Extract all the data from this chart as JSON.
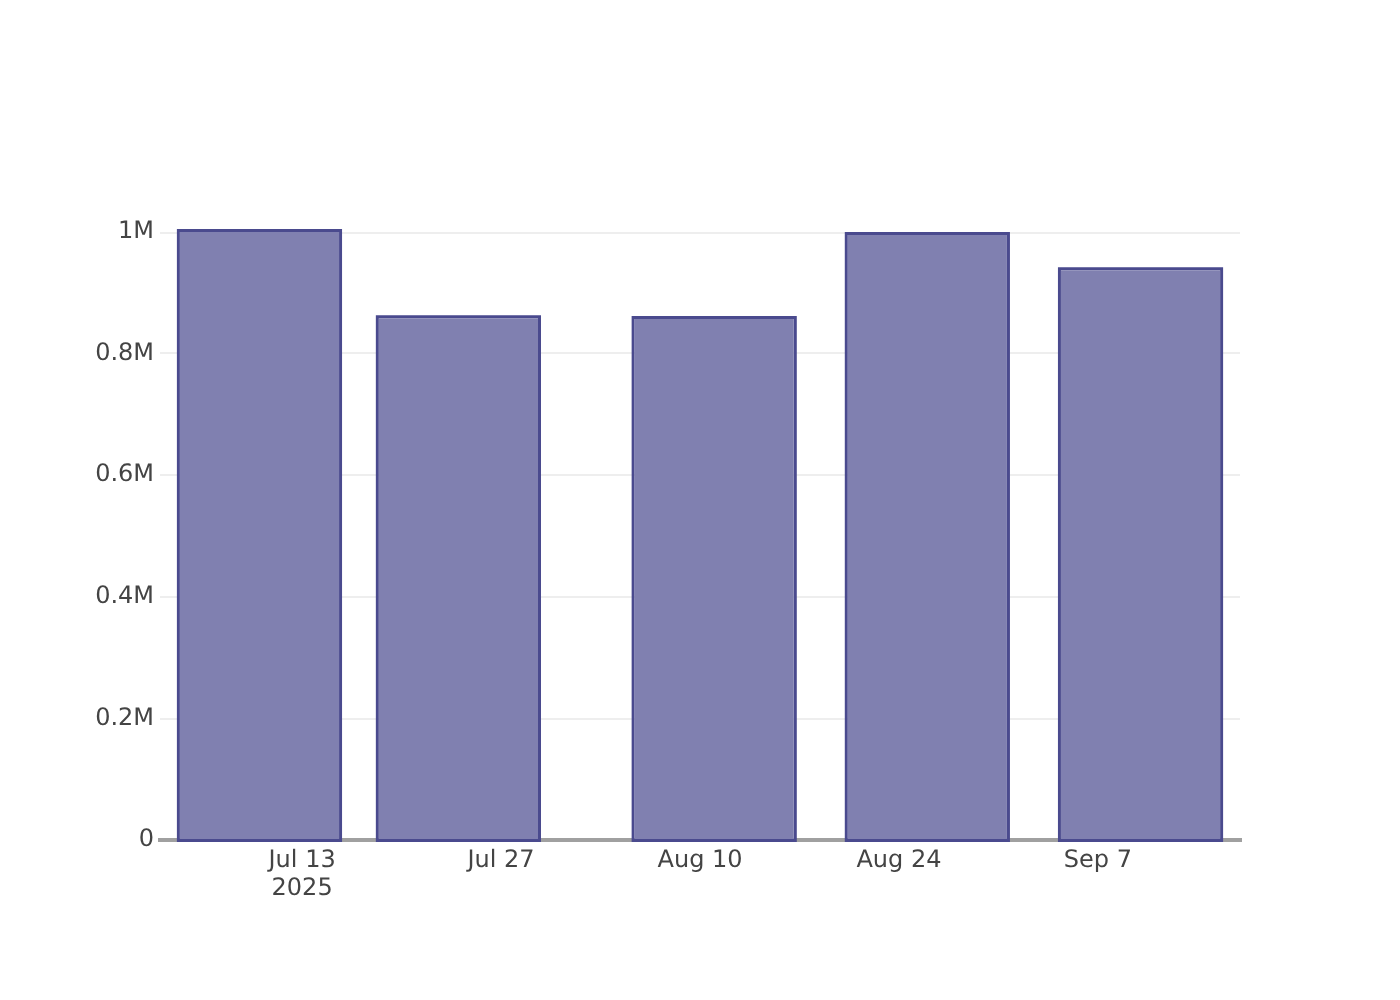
{
  "chart_data": {
    "type": "bar",
    "x": [
      "2025-07-10",
      "2025-07-24",
      "2025-08-11",
      "2025-08-26",
      "2025-09-10"
    ],
    "values": [
      1000000,
      858000,
      857000,
      995000,
      937000
    ],
    "color": "#8080b0",
    "xlim": [
      "2025-07-03",
      "2025-09-17"
    ],
    "xticks": [
      {
        "value": "2025-07-13",
        "label": "Jul 13\n2025"
      },
      {
        "value": "2025-07-27",
        "label": "Jul 27"
      },
      {
        "value": "2025-08-10",
        "label": "Aug 10"
      },
      {
        "value": "2025-08-24",
        "label": "Aug 24"
      },
      {
        "value": "2025-09-07",
        "label": "Sep 7"
      }
    ],
    "ylim": [
      0,
      1000000
    ],
    "yticks": [
      0,
      {
        "value": 200000,
        "label": "0.2M"
      },
      {
        "value": 400000,
        "label": "0.4M"
      },
      {
        "value": 600000,
        "label": "0.6M"
      },
      {
        "value": 800000,
        "label": "0.8M"
      },
      {
        "value": 1000000,
        "label": "1M"
      }
    ],
    "grid": "y",
    "legend": false
  }
}
